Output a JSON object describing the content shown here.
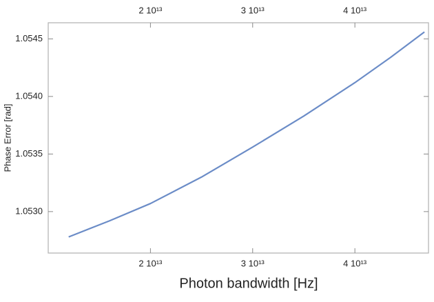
{
  "chart_data": {
    "type": "line",
    "x_label": "Photon bandwidth [Hz]",
    "y_label": "Phase Error [rad]",
    "x": [
      12000000000000.0,
      16000000000000.0,
      20000000000000.0,
      25000000000000.0,
      30000000000000.0,
      35000000000000.0,
      40000000000000.0,
      43500000000000.0,
      46800000000000.0
    ],
    "values": [
      1.05278,
      1.05292,
      1.05307,
      1.0533,
      1.05356,
      1.05383,
      1.05412,
      1.05434,
      1.05456
    ],
    "color": "#6b8cc7",
    "xlim": [
      10000000000000.0,
      47200000000000.0
    ],
    "ylim": [
      1.05264,
      1.05464
    ],
    "xticks": [
      {
        "value": 20000000000000.0,
        "label": "2 10¹³"
      },
      {
        "value": 30000000000000.0,
        "label": "3 10¹³"
      },
      {
        "value": 40000000000000.0,
        "label": "4 10¹³"
      }
    ],
    "yticks": [
      {
        "value": 1.053,
        "label": "1.0530"
      },
      {
        "value": 1.0535,
        "label": "1.0535"
      },
      {
        "value": 1.054,
        "label": "1.0540"
      },
      {
        "value": 1.0545,
        "label": "1.0545"
      }
    ],
    "top_axis_ticks": true
  }
}
